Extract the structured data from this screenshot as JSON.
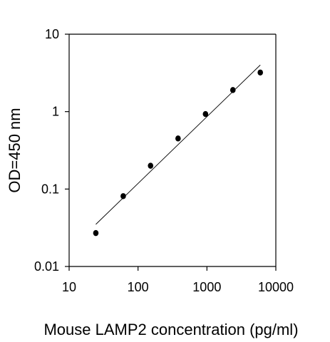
{
  "chart_data": {
    "type": "scatter",
    "title": "",
    "xlabel": "Mouse LAMP2 concentration (pg/ml)",
    "ylabel": "OD=450 nm",
    "xscale": "log",
    "yscale": "log",
    "xlim": [
      10,
      10000
    ],
    "ylim": [
      0.01,
      10
    ],
    "x_ticks": [
      10,
      100,
      1000,
      10000
    ],
    "x_tick_labels": [
      "10",
      "100",
      "1000",
      "10000"
    ],
    "y_ticks": [
      0.01,
      0.1,
      1,
      10
    ],
    "y_tick_labels": [
      "0.01",
      "0.1",
      "1",
      "10"
    ],
    "grid": false,
    "legend": "none",
    "series": [
      {
        "type": "scatter",
        "x": [
          24.4,
          61,
          152,
          381,
          953,
          2380,
          5950
        ],
        "y": [
          0.027,
          0.081,
          0.2,
          0.45,
          0.93,
          1.9,
          3.2
        ],
        "color": "#000000"
      }
    ],
    "fit_line": {
      "type": "linear-log-log",
      "x": [
        24.4,
        5950
      ],
      "y": [
        0.035,
        4.0
      ],
      "color": "#000000"
    }
  }
}
